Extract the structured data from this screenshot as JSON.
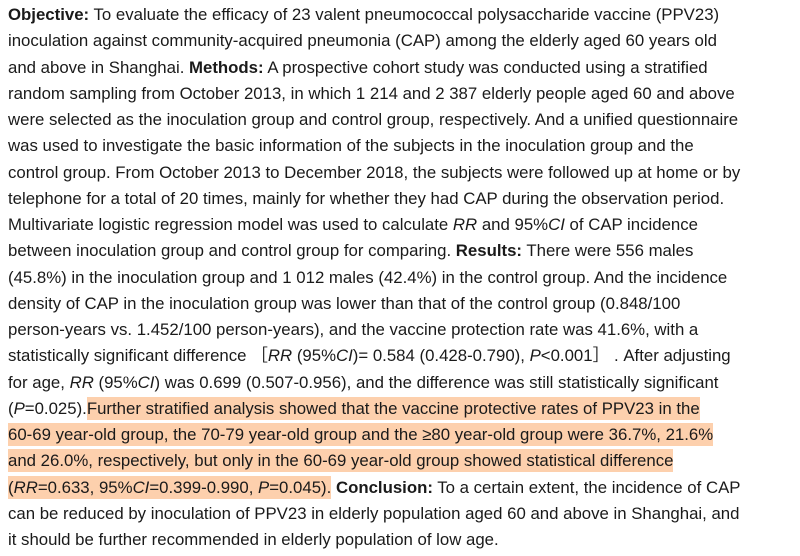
{
  "highlight_color": "#fdd0ad",
  "lines": [
    [
      {
        "t": "Objective:",
        "s": "b"
      },
      {
        "t": " To evaluate the efficacy of 23 valent pneumococcal polysaccharide vaccine (PPV23)"
      }
    ],
    [
      {
        "t": "inoculation against community-acquired pneumonia (CAP) among the elderly aged 60 years old"
      }
    ],
    [
      {
        "t": "and above in Shanghai. "
      },
      {
        "t": "Methods:",
        "s": "b"
      },
      {
        "t": " A prospective cohort study was conducted using a stratified"
      }
    ],
    [
      {
        "t": "random sampling from October 2013, in which 1 214 and 2 387 elderly people aged 60 and above"
      }
    ],
    [
      {
        "t": "were selected as the inoculation group and control group, respectively. And a unified questionnaire"
      }
    ],
    [
      {
        "t": "was used to investigate the basic information of the subjects in the inoculation group and the"
      }
    ],
    [
      {
        "t": "control group. From October 2013 to December 2018, the subjects were followed up at home or by"
      }
    ],
    [
      {
        "t": "telephone for a total of 20 times, mainly for whether they had CAP during the observation period."
      }
    ],
    [
      {
        "t": "Multivariate logistic regression model was used to calculate "
      },
      {
        "t": "RR",
        "s": "i"
      },
      {
        "t": " and 95%"
      },
      {
        "t": "CI",
        "s": "i"
      },
      {
        "t": " of CAP incidence"
      }
    ],
    [
      {
        "t": "between inoculation group and control group for comparing. "
      },
      {
        "t": "Results:",
        "s": "b"
      },
      {
        "t": " There were 556 males"
      }
    ],
    [
      {
        "t": "(45.8%) in the inoculation group and 1 012 males (42.4%) in the control group. And the incidence"
      }
    ],
    [
      {
        "t": "density of CAP in the inoculation group was lower than that of the control group (0.848/100"
      }
    ],
    [
      {
        "t": "person-years vs. 1.452/100 person-years), and the vaccine protection rate was 41.6%, with a"
      }
    ],
    [
      {
        "t": "statistically significant difference ［"
      },
      {
        "t": "RR",
        "s": "i"
      },
      {
        "t": " (95%"
      },
      {
        "t": "CI",
        "s": "i"
      },
      {
        "t": ")= 0.584 (0.428-0.790), "
      },
      {
        "t": "P",
        "s": "i"
      },
      {
        "t": "<0.001］ . After adjusting"
      }
    ],
    [
      {
        "t": "for age, "
      },
      {
        "t": "RR",
        "s": "i"
      },
      {
        "t": " (95%"
      },
      {
        "t": "CI",
        "s": "i"
      },
      {
        "t": ") was 0.699 (0.507-0.956), and the difference was still statistically significant"
      }
    ],
    [
      {
        "t": "("
      },
      {
        "t": "P",
        "s": "i"
      },
      {
        "t": "=0.025)."
      },
      {
        "t": "Further stratified analysis showed that the vaccine protective rates of PPV23 in the",
        "s": "h"
      }
    ],
    [
      {
        "t": "60-69 year-old group, the 70-79 year-old group and the ≥80 year-old group were 36.7%, 21.6%",
        "s": "h"
      }
    ],
    [
      {
        "t": "and 26.0%, respectively, but only in the 60-69 year-old group showed statistical difference",
        "s": "h"
      }
    ],
    [
      {
        "t": "(",
        "s": "h"
      },
      {
        "t": "RR",
        "s": "h i"
      },
      {
        "t": "=0.633, 95%",
        "s": "h"
      },
      {
        "t": "CI",
        "s": "h i"
      },
      {
        "t": "=0.399-0.990, ",
        "s": "h"
      },
      {
        "t": "P",
        "s": "h i"
      },
      {
        "t": "=0.045).",
        "s": "h"
      },
      {
        "t": " "
      },
      {
        "t": "Conclusion:",
        "s": "b"
      },
      {
        "t": " To a certain extent, the incidence of CAP"
      }
    ],
    [
      {
        "t": "can be reduced by inoculation of PPV23 in elderly population aged 60 and above in Shanghai, and"
      }
    ],
    [
      {
        "t": "it should be further recommended in elderly population of low age."
      }
    ]
  ]
}
